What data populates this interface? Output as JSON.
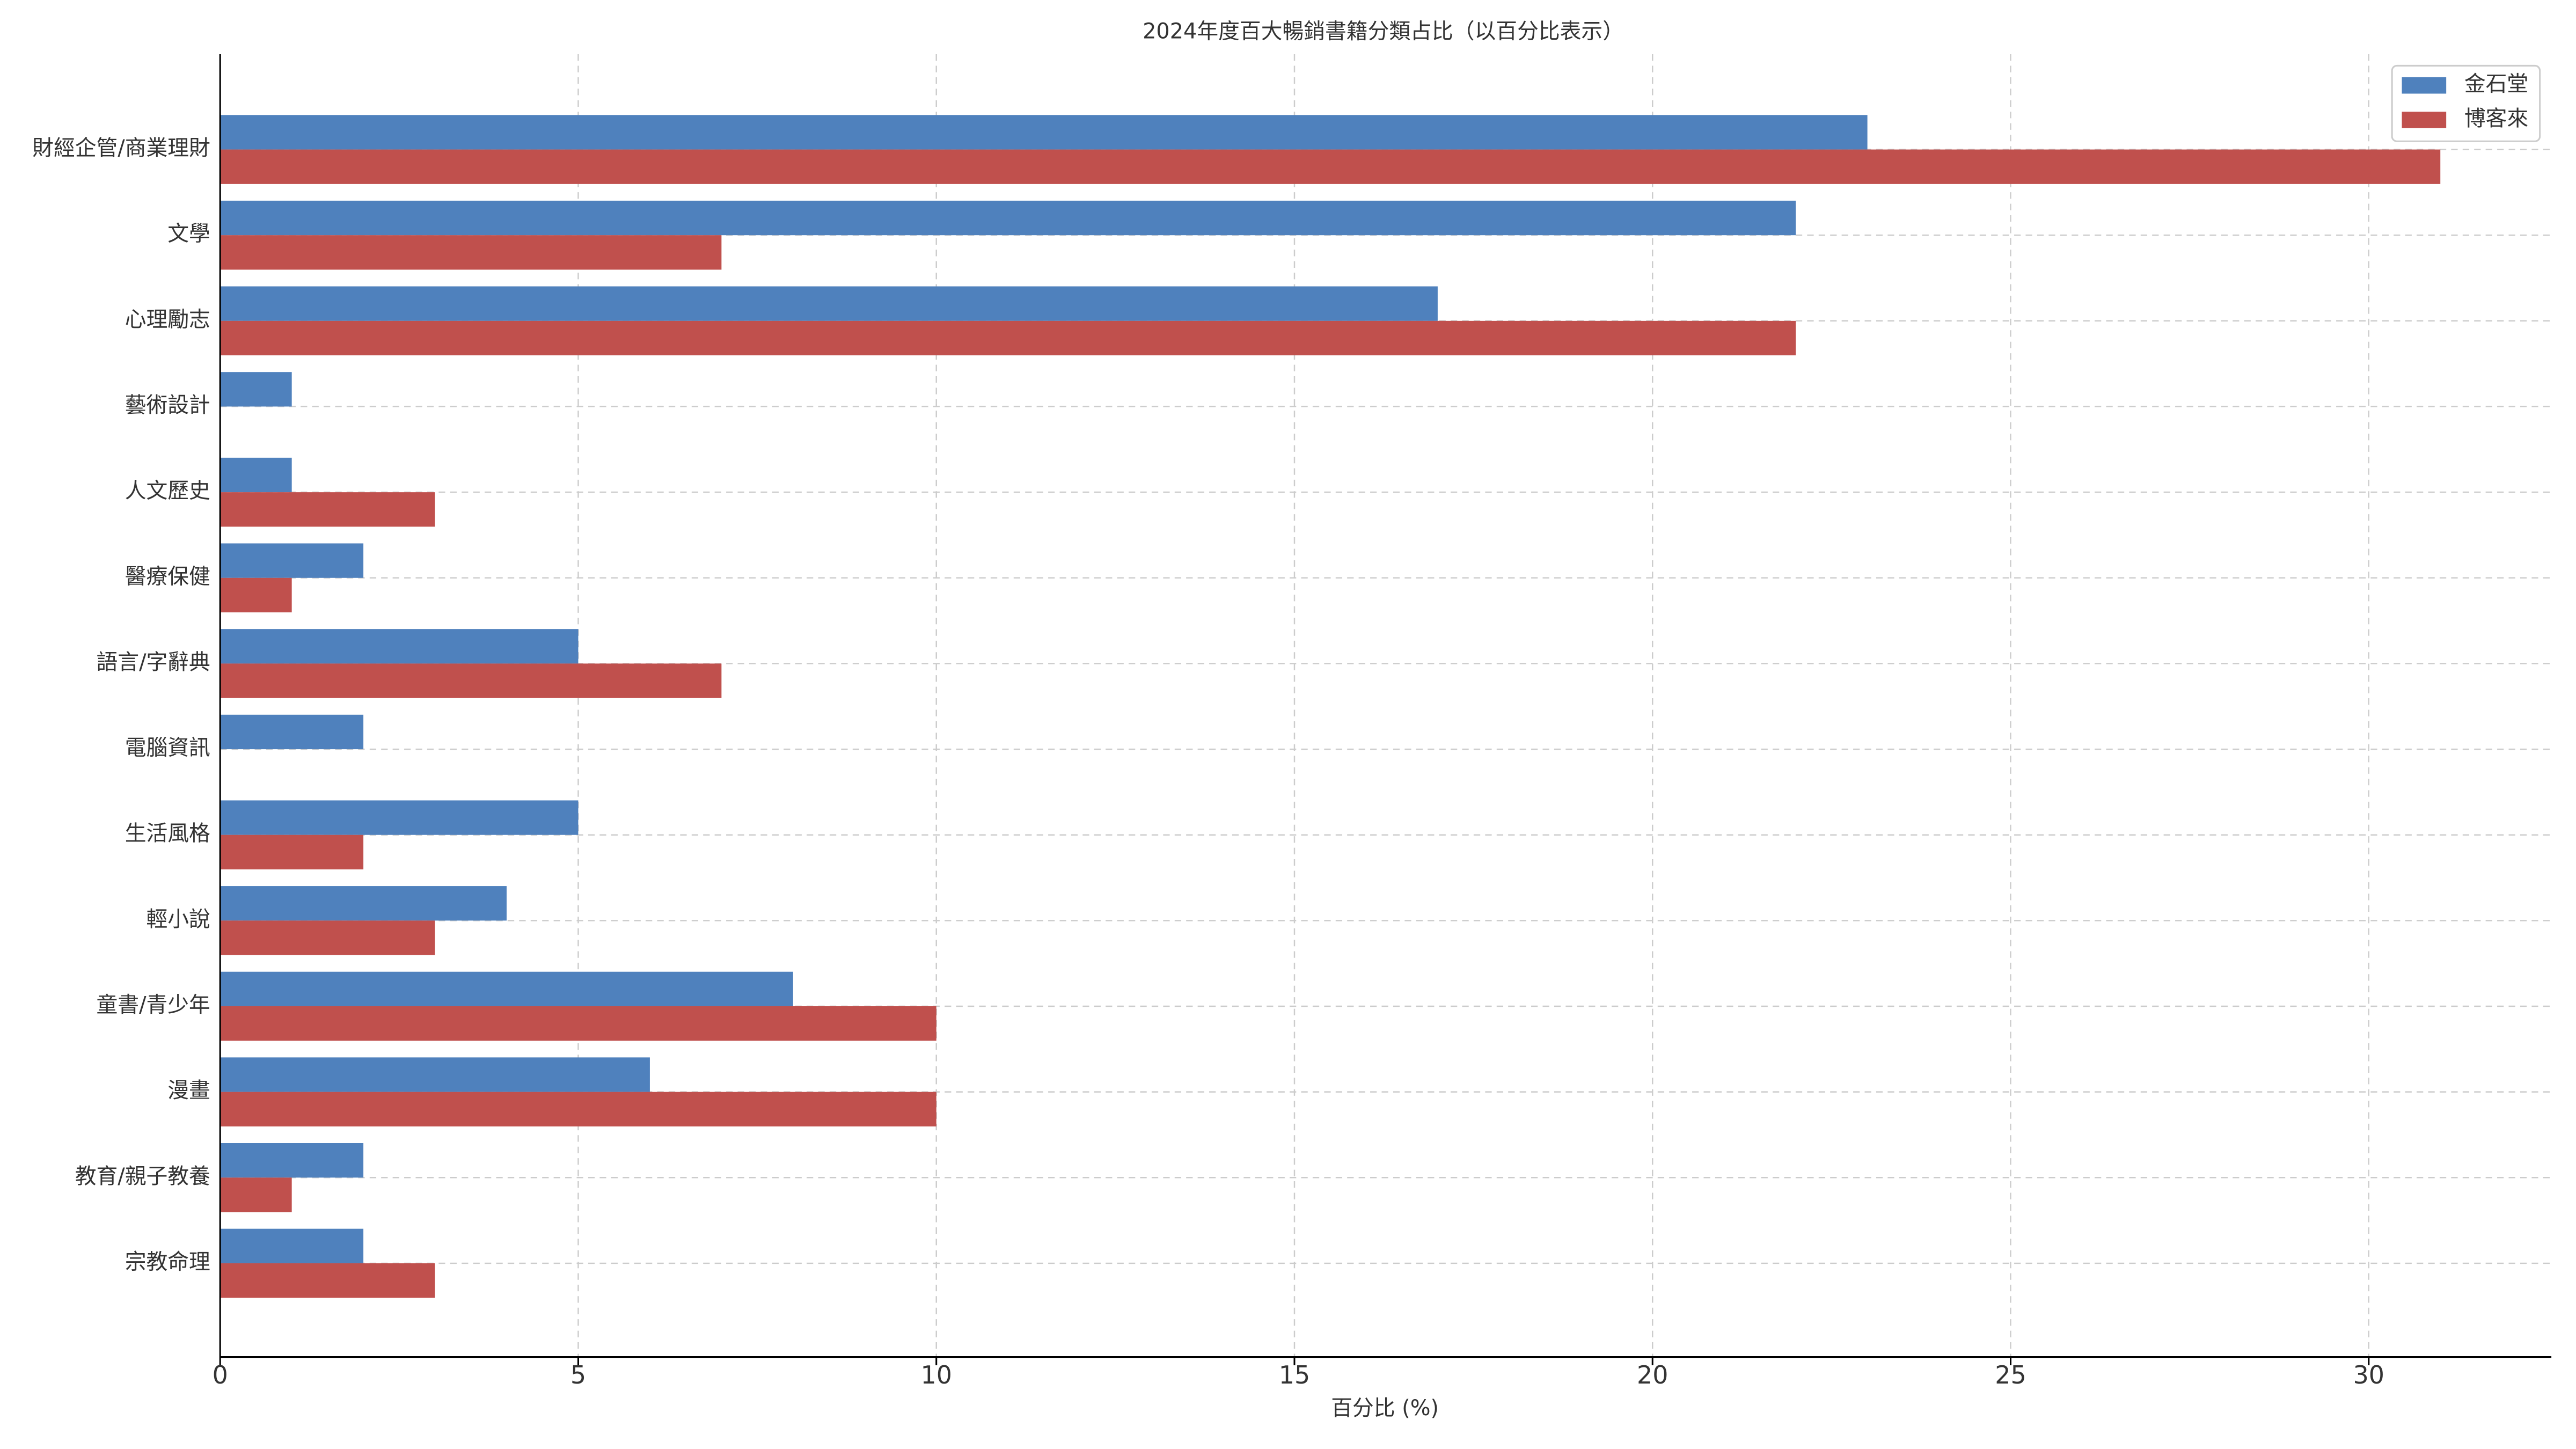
{
  "chart_data": {
    "type": "barh",
    "title": "2024年度百大暢銷書籍分類占比（以百分比表示）",
    "xlabel": "百分比 (%)",
    "categories": [
      "財經企管/商業理財",
      "文學",
      "心理勵志",
      "藝術設計",
      "人文歷史",
      "醫療保健",
      "語言/字辭典",
      "電腦資訊",
      "生活風格",
      "輕小說",
      "童書/青少年",
      "漫畫",
      "教育/親子教養",
      "宗教命理"
    ],
    "series": [
      {
        "name": "金石堂",
        "color": "#4f81bd",
        "values": [
          23,
          22,
          17,
          1,
          1,
          2,
          5,
          2,
          5,
          4,
          8,
          6,
          2,
          2
        ]
      },
      {
        "name": "博客來",
        "color": "#c0504d",
        "values": [
          31,
          7,
          22,
          0,
          3,
          1,
          7,
          0,
          2,
          3,
          10,
          10,
          1,
          3
        ]
      }
    ],
    "xlim": [
      0,
      32.55
    ],
    "xticks": [
      0,
      5,
      10,
      15,
      20,
      25,
      30
    ],
    "grid": true,
    "legend": "upper right"
  }
}
